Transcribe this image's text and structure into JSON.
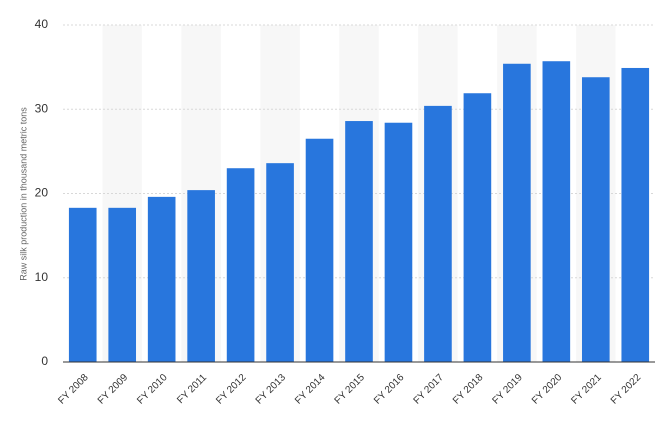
{
  "chart_data": {
    "type": "bar",
    "y_label": "Raw silk production in thousand metric tons",
    "categories": [
      "FY 2008",
      "FY 2009",
      "FY 2010",
      "FY 2011",
      "FY 2012",
      "FY 2013",
      "FY 2014",
      "FY 2015",
      "FY 2016",
      "FY 2017",
      "FY 2018",
      "FY 2019",
      "FY 2020",
      "FY 2021",
      "FY 2022"
    ],
    "values": [
      18.3,
      18.3,
      19.6,
      20.4,
      23.0,
      23.6,
      26.5,
      28.6,
      28.4,
      30.4,
      31.9,
      35.4,
      35.7,
      33.8,
      34.9
    ],
    "color": "#2876dd",
    "ylim": [
      0,
      40
    ],
    "yticks": [
      0,
      10,
      20,
      30,
      40
    ],
    "grid": true
  }
}
